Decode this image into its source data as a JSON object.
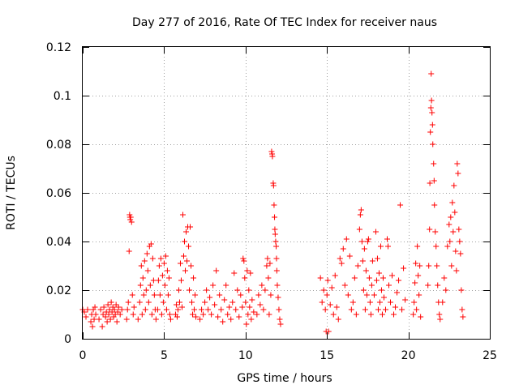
{
  "chart_data": {
    "type": "scatter",
    "title": "Day 277 of 2016, Rate Of TEC Index for receiver naus",
    "xlabel": "GPS time / hours",
    "ylabel": "ROTI / TECUs",
    "xlim": [
      0,
      25
    ],
    "ylim": [
      0,
      0.12
    ],
    "xticks": [
      0,
      5,
      10,
      15,
      20,
      25
    ],
    "yticks": [
      0,
      0.02,
      0.04,
      0.06,
      0.08,
      0.1,
      0.12
    ],
    "xtick_labels": [
      "0",
      "5",
      "10",
      "15",
      "20",
      "25"
    ],
    "ytick_labels": [
      "0",
      "0.02",
      "0.04",
      "0.06",
      "0.08",
      "0.1",
      "0.12"
    ],
    "grid": true,
    "marker": "+",
    "color": "#ff0000",
    "series": [
      {
        "name": "ROTI",
        "points": [
          [
            0.0,
            0.012
          ],
          [
            0.1,
            0.011
          ],
          [
            0.2,
            0.009
          ],
          [
            0.3,
            0.012
          ],
          [
            0.5,
            0.007
          ],
          [
            0.55,
            0.01
          ],
          [
            0.6,
            0.005
          ],
          [
            0.65,
            0.012
          ],
          [
            0.7,
            0.008
          ],
          [
            0.75,
            0.013
          ],
          [
            0.8,
            0.01
          ],
          [
            1.0,
            0.008
          ],
          [
            1.1,
            0.012
          ],
          [
            1.2,
            0.005
          ],
          [
            1.25,
            0.01
          ],
          [
            1.3,
            0.013
          ],
          [
            1.4,
            0.009
          ],
          [
            1.45,
            0.011
          ],
          [
            1.5,
            0.007
          ],
          [
            1.55,
            0.014
          ],
          [
            1.6,
            0.01
          ],
          [
            1.65,
            0.012
          ],
          [
            1.7,
            0.008
          ],
          [
            1.75,
            0.015
          ],
          [
            1.8,
            0.011
          ],
          [
            1.85,
            0.013
          ],
          [
            1.9,
            0.009
          ],
          [
            1.95,
            0.012
          ],
          [
            2.0,
            0.01
          ],
          [
            2.05,
            0.014
          ],
          [
            2.1,
            0.007
          ],
          [
            2.15,
            0.011
          ],
          [
            2.2,
            0.013
          ],
          [
            2.3,
            0.01
          ],
          [
            2.4,
            0.012
          ],
          [
            2.7,
            0.008
          ],
          [
            2.75,
            0.012
          ],
          [
            2.8,
            0.015
          ],
          [
            2.85,
            0.036
          ],
          [
            2.88,
            0.051
          ],
          [
            2.9,
            0.05
          ],
          [
            2.92,
            0.049
          ],
          [
            2.95,
            0.05
          ],
          [
            3.0,
            0.048
          ],
          [
            3.05,
            0.018
          ],
          [
            3.1,
            0.01
          ],
          [
            3.15,
            0.013
          ],
          [
            3.4,
            0.008
          ],
          [
            3.5,
            0.015
          ],
          [
            3.55,
            0.022
          ],
          [
            3.6,
            0.03
          ],
          [
            3.65,
            0.01
          ],
          [
            3.7,
            0.025
          ],
          [
            3.75,
            0.018
          ],
          [
            3.8,
            0.032
          ],
          [
            3.85,
            0.012
          ],
          [
            3.9,
            0.02
          ],
          [
            3.95,
            0.035
          ],
          [
            4.0,
            0.028
          ],
          [
            4.05,
            0.015
          ],
          [
            4.1,
            0.038
          ],
          [
            4.15,
            0.022
          ],
          [
            4.2,
            0.039
          ],
          [
            4.25,
            0.01
          ],
          [
            4.3,
            0.033
          ],
          [
            4.35,
            0.024
          ],
          [
            4.4,
            0.018
          ],
          [
            4.45,
            0.012
          ],
          [
            4.5,
            0.008
          ],
          [
            4.6,
            0.012
          ],
          [
            4.65,
            0.024
          ],
          [
            4.7,
            0.03
          ],
          [
            4.75,
            0.018
          ],
          [
            4.8,
            0.033
          ],
          [
            4.85,
            0.01
          ],
          [
            4.9,
            0.026
          ],
          [
            4.95,
            0.015
          ],
          [
            5.0,
            0.031
          ],
          [
            5.05,
            0.022
          ],
          [
            5.1,
            0.034
          ],
          [
            5.15,
            0.012
          ],
          [
            5.2,
            0.028
          ],
          [
            5.25,
            0.018
          ],
          [
            5.3,
            0.025
          ],
          [
            5.35,
            0.01
          ],
          [
            5.4,
            0.008
          ],
          [
            5.7,
            0.01
          ],
          [
            5.75,
            0.014
          ],
          [
            5.8,
            0.009
          ],
          [
            5.85,
            0.012
          ],
          [
            5.9,
            0.02
          ],
          [
            5.95,
            0.015
          ],
          [
            6.0,
            0.031
          ],
          [
            6.05,
            0.024
          ],
          [
            6.1,
            0.013
          ],
          [
            6.15,
            0.051
          ],
          [
            6.2,
            0.034
          ],
          [
            6.25,
            0.04
          ],
          [
            6.3,
            0.028
          ],
          [
            6.35,
            0.044
          ],
          [
            6.4,
            0.032
          ],
          [
            6.45,
            0.046
          ],
          [
            6.5,
            0.038
          ],
          [
            6.55,
            0.02
          ],
          [
            6.6,
            0.046
          ],
          [
            6.65,
            0.03
          ],
          [
            6.7,
            0.015
          ],
          [
            6.75,
            0.01
          ],
          [
            6.8,
            0.025
          ],
          [
            6.85,
            0.012
          ],
          [
            6.9,
            0.018
          ],
          [
            6.95,
            0.009
          ],
          [
            7.2,
            0.008
          ],
          [
            7.3,
            0.012
          ],
          [
            7.4,
            0.01
          ],
          [
            7.5,
            0.015
          ],
          [
            7.6,
            0.02
          ],
          [
            7.7,
            0.012
          ],
          [
            7.8,
            0.017
          ],
          [
            7.9,
            0.01
          ],
          [
            8.0,
            0.022
          ],
          [
            8.1,
            0.014
          ],
          [
            8.2,
            0.028
          ],
          [
            8.3,
            0.009
          ],
          [
            8.4,
            0.018
          ],
          [
            8.5,
            0.012
          ],
          [
            8.6,
            0.007
          ],
          [
            8.7,
            0.016
          ],
          [
            8.8,
            0.022
          ],
          [
            8.9,
            0.01
          ],
          [
            9.0,
            0.013
          ],
          [
            9.1,
            0.008
          ],
          [
            9.2,
            0.015
          ],
          [
            9.3,
            0.027
          ],
          [
            9.4,
            0.012
          ],
          [
            9.5,
            0.02
          ],
          [
            9.6,
            0.009
          ],
          [
            9.7,
            0.018
          ],
          [
            9.8,
            0.013
          ],
          [
            9.85,
            0.033
          ],
          [
            9.9,
            0.032
          ],
          [
            9.95,
            0.025
          ],
          [
            10.0,
            0.015
          ],
          [
            10.05,
            0.006
          ],
          [
            10.1,
            0.028
          ],
          [
            10.15,
            0.01
          ],
          [
            10.2,
            0.02
          ],
          [
            10.25,
            0.013
          ],
          [
            10.3,
            0.027
          ],
          [
            10.35,
            0.008
          ],
          [
            10.4,
            0.016
          ],
          [
            10.5,
            0.011
          ],
          [
            10.7,
            0.01
          ],
          [
            10.8,
            0.018
          ],
          [
            10.9,
            0.014
          ],
          [
            11.0,
            0.022
          ],
          [
            11.1,
            0.012
          ],
          [
            11.2,
            0.02
          ],
          [
            11.3,
            0.03
          ],
          [
            11.35,
            0.033
          ],
          [
            11.4,
            0.025
          ],
          [
            11.45,
            0.01
          ],
          [
            11.5,
            0.031
          ],
          [
            11.55,
            0.018
          ],
          [
            11.6,
            0.077
          ],
          [
            11.63,
            0.076
          ],
          [
            11.65,
            0.075
          ],
          [
            11.7,
            0.064
          ],
          [
            11.72,
            0.063
          ],
          [
            11.75,
            0.055
          ],
          [
            11.78,
            0.05
          ],
          [
            11.8,
            0.045
          ],
          [
            11.82,
            0.043
          ],
          [
            11.85,
            0.04
          ],
          [
            11.88,
            0.038
          ],
          [
            11.9,
            0.033
          ],
          [
            11.92,
            0.028
          ],
          [
            11.95,
            0.022
          ],
          [
            12.0,
            0.017
          ],
          [
            12.05,
            0.012
          ],
          [
            12.1,
            0.008
          ],
          [
            12.15,
            0.006
          ],
          [
            14.6,
            0.025
          ],
          [
            14.7,
            0.015
          ],
          [
            14.8,
            0.02
          ],
          [
            14.9,
            0.012
          ],
          [
            14.95,
            0.003
          ],
          [
            15.0,
            0.018
          ],
          [
            15.05,
            0.024
          ],
          [
            15.1,
            0.003
          ],
          [
            15.2,
            0.014
          ],
          [
            15.3,
            0.021
          ],
          [
            15.4,
            0.01
          ],
          [
            15.5,
            0.026
          ],
          [
            15.6,
            0.013
          ],
          [
            15.7,
            0.008
          ],
          [
            15.8,
            0.033
          ],
          [
            15.9,
            0.031
          ],
          [
            16.0,
            0.037
          ],
          [
            16.1,
            0.022
          ],
          [
            16.2,
            0.041
          ],
          [
            16.3,
            0.018
          ],
          [
            16.4,
            0.034
          ],
          [
            16.5,
            0.012
          ],
          [
            16.6,
            0.015
          ],
          [
            16.7,
            0.025
          ],
          [
            16.8,
            0.01
          ],
          [
            16.9,
            0.03
          ],
          [
            17.0,
            0.045
          ],
          [
            17.05,
            0.051
          ],
          [
            17.1,
            0.053
          ],
          [
            17.15,
            0.04
          ],
          [
            17.2,
            0.032
          ],
          [
            17.25,
            0.02
          ],
          [
            17.3,
            0.037
          ],
          [
            17.35,
            0.012
          ],
          [
            17.4,
            0.028
          ],
          [
            17.45,
            0.018
          ],
          [
            17.5,
            0.04
          ],
          [
            17.55,
            0.041
          ],
          [
            17.6,
            0.025
          ],
          [
            17.65,
            0.015
          ],
          [
            17.7,
            0.01
          ],
          [
            17.75,
            0.022
          ],
          [
            17.8,
            0.032
          ],
          [
            17.9,
            0.018
          ],
          [
            18.0,
            0.044
          ],
          [
            18.05,
            0.024
          ],
          [
            18.1,
            0.033
          ],
          [
            18.15,
            0.012
          ],
          [
            18.2,
            0.027
          ],
          [
            18.25,
            0.015
          ],
          [
            18.3,
            0.038
          ],
          [
            18.35,
            0.02
          ],
          [
            18.4,
            0.01
          ],
          [
            18.45,
            0.025
          ],
          [
            18.5,
            0.017
          ],
          [
            18.6,
            0.012
          ],
          [
            18.7,
            0.041
          ],
          [
            18.75,
            0.038
          ],
          [
            18.8,
            0.022
          ],
          [
            18.9,
            0.015
          ],
          [
            19.0,
            0.026
          ],
          [
            19.1,
            0.01
          ],
          [
            19.2,
            0.013
          ],
          [
            19.3,
            0.019
          ],
          [
            19.4,
            0.024
          ],
          [
            19.5,
            0.055
          ],
          [
            19.6,
            0.012
          ],
          [
            19.7,
            0.029
          ],
          [
            19.8,
            0.016
          ],
          [
            20.3,
            0.01
          ],
          [
            20.35,
            0.015
          ],
          [
            20.4,
            0.023
          ],
          [
            20.45,
            0.031
          ],
          [
            20.5,
            0.012
          ],
          [
            20.55,
            0.038
          ],
          [
            20.6,
            0.026
          ],
          [
            20.65,
            0.018
          ],
          [
            20.7,
            0.03
          ],
          [
            20.75,
            0.009
          ],
          [
            21.2,
            0.022
          ],
          [
            21.25,
            0.03
          ],
          [
            21.3,
            0.045
          ],
          [
            21.32,
            0.064
          ],
          [
            21.35,
            0.085
          ],
          [
            21.38,
            0.095
          ],
          [
            21.4,
            0.109
          ],
          [
            21.42,
            0.098
          ],
          [
            21.45,
            0.093
          ],
          [
            21.48,
            0.088
          ],
          [
            21.5,
            0.08
          ],
          [
            21.55,
            0.072
          ],
          [
            21.58,
            0.065
          ],
          [
            21.6,
            0.055
          ],
          [
            21.65,
            0.044
          ],
          [
            21.7,
            0.038
          ],
          [
            21.75,
            0.03
          ],
          [
            21.8,
            0.022
          ],
          [
            21.85,
            0.015
          ],
          [
            21.9,
            0.01
          ],
          [
            21.95,
            0.008
          ],
          [
            22.1,
            0.015
          ],
          [
            22.2,
            0.025
          ],
          [
            22.3,
            0.02
          ],
          [
            22.4,
            0.038
          ],
          [
            22.5,
            0.047
          ],
          [
            22.55,
            0.04
          ],
          [
            22.6,
            0.05
          ],
          [
            22.65,
            0.03
          ],
          [
            22.7,
            0.056
          ],
          [
            22.75,
            0.044
          ],
          [
            22.8,
            0.063
          ],
          [
            22.85,
            0.052
          ],
          [
            22.9,
            0.036
          ],
          [
            22.95,
            0.028
          ],
          [
            23.0,
            0.072
          ],
          [
            23.05,
            0.068
          ],
          [
            23.1,
            0.045
          ],
          [
            23.15,
            0.04
          ],
          [
            23.2,
            0.035
          ],
          [
            23.25,
            0.02
          ],
          [
            23.3,
            0.012
          ],
          [
            23.35,
            0.009
          ]
        ]
      }
    ]
  }
}
